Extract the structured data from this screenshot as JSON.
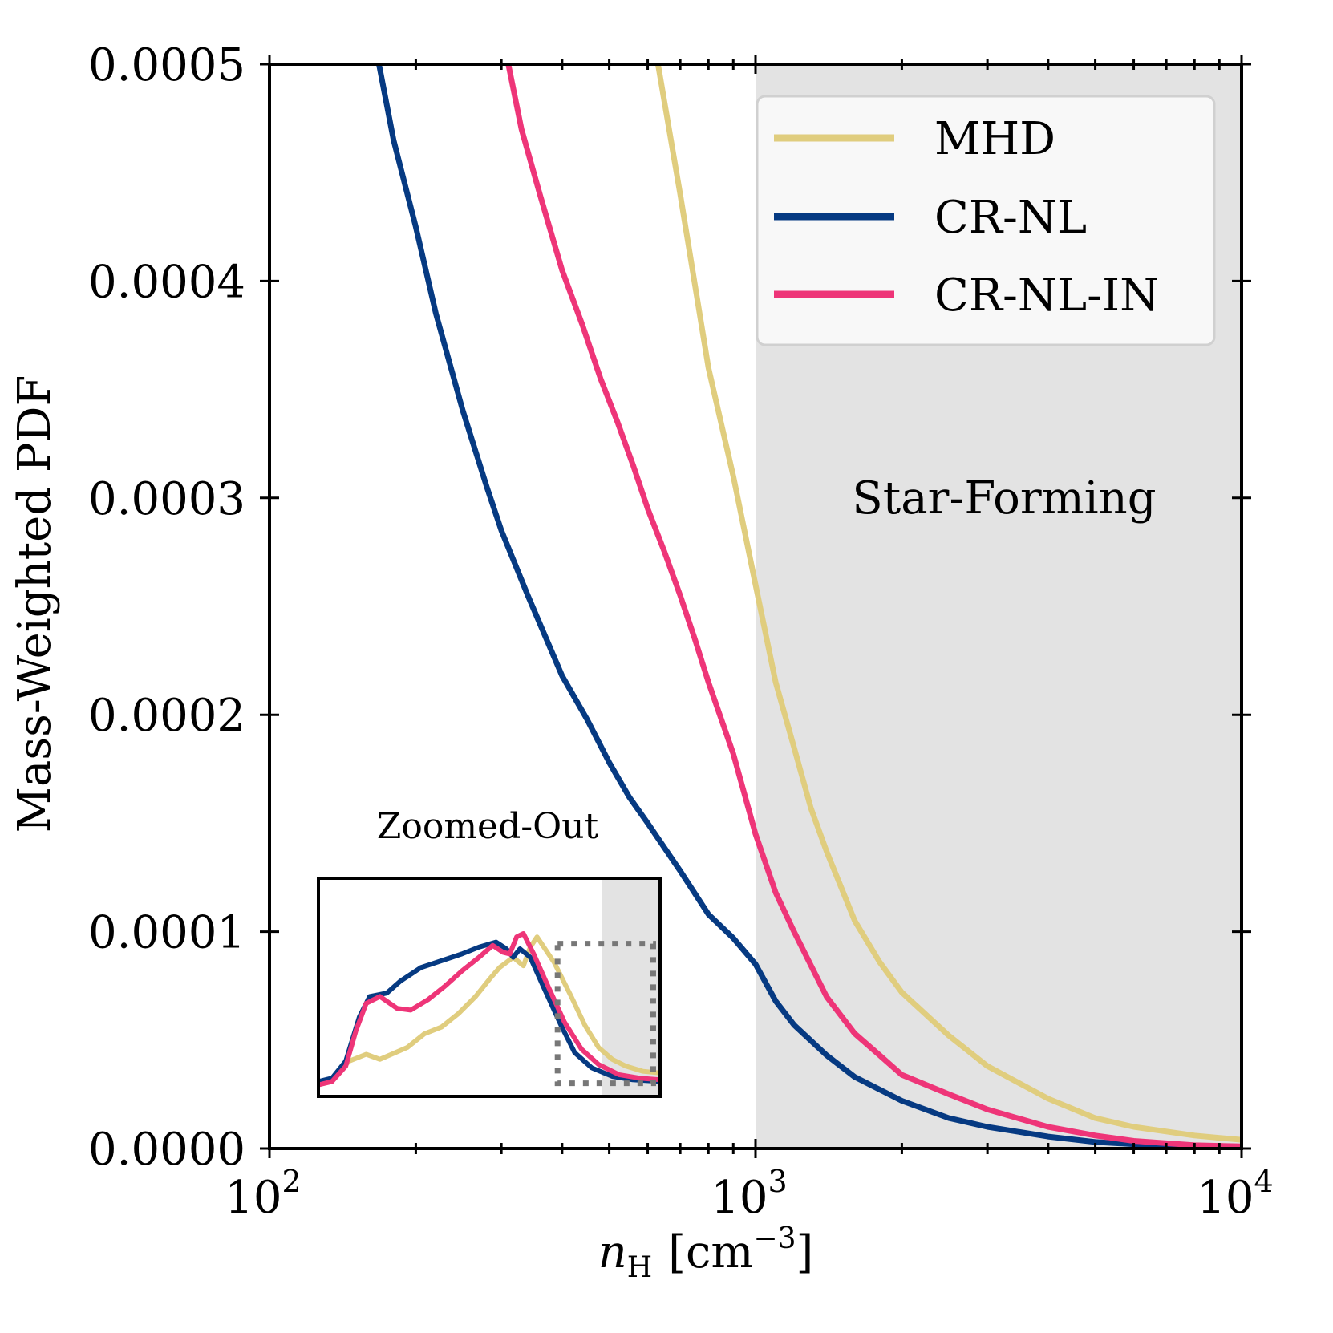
{
  "chart_data": {
    "type": "line",
    "xlabel": "n_H [cm^-3]",
    "xlabel_parts": {
      "symbol": "n",
      "subscript": "H",
      "unit_prefix": "[cm",
      "exponent": "−3",
      "unit_suffix": "]"
    },
    "ylabel": "Mass-Weighted PDF",
    "x_scale": "log",
    "xlim": [
      100,
      10000
    ],
    "ylim": [
      0,
      0.0005
    ],
    "x_ticks": [
      {
        "value": 100,
        "base": "10",
        "exp": "2"
      },
      {
        "value": 1000,
        "base": "10",
        "exp": "3"
      },
      {
        "value": 10000,
        "base": "10",
        "exp": "4"
      }
    ],
    "y_ticks": [
      {
        "value": 0,
        "label": "0.0000"
      },
      {
        "value": 0.0001,
        "label": "0.0001"
      },
      {
        "value": 0.0002,
        "label": "0.0002"
      },
      {
        "value": 0.0003,
        "label": "0.0003"
      },
      {
        "value": 0.0004,
        "label": "0.0004"
      },
      {
        "value": 0.0005,
        "label": "0.0005"
      }
    ],
    "grid": false,
    "legend_position": "top-right",
    "shaded_region": {
      "xmin": 1000,
      "xmax": 10000,
      "label": "Star-Forming",
      "color": "#e3e3e3"
    },
    "series": [
      {
        "name": "MHD",
        "color": "#e0cd7e",
        "x": [
          630,
          700,
          800,
          900,
          1000,
          1100,
          1200,
          1300,
          1400,
          1600,
          1800,
          2000,
          2500,
          3000,
          4000,
          5000,
          6000,
          8000,
          10000
        ],
        "y": [
          0.0005,
          0.00044,
          0.00036,
          0.00031,
          0.00026,
          0.000215,
          0.000185,
          0.000157,
          0.000137,
          0.000105,
          8.6e-05,
          7.2e-05,
          5.2e-05,
          3.8e-05,
          2.3e-05,
          1.4e-05,
          1e-05,
          6e-06,
          4e-06
        ]
      },
      {
        "name": "CR-NL",
        "color": "#063a82",
        "x": [
          168,
          180,
          200,
          220,
          250,
          280,
          300,
          340,
          400,
          450,
          500,
          550,
          600,
          700,
          800,
          900,
          1000,
          1100,
          1200,
          1400,
          1600,
          2000,
          2500,
          3000,
          4000,
          5000,
          6000,
          8000,
          10000
        ],
        "y": [
          0.0005,
          0.000465,
          0.000425,
          0.000385,
          0.00034,
          0.000305,
          0.000285,
          0.000255,
          0.000218,
          0.000198,
          0.000178,
          0.000162,
          0.00015,
          0.000128,
          0.000108,
          9.7e-05,
          8.5e-05,
          6.8e-05,
          5.7e-05,
          4.3e-05,
          3.3e-05,
          2.2e-05,
          1.4e-05,
          1e-05,
          5.5e-06,
          3e-06,
          2e-06,
          1e-06,
          8e-07
        ]
      },
      {
        "name": "CR-NL-IN",
        "color": "#ee3578",
        "x": [
          310,
          330,
          360,
          400,
          440,
          480,
          520,
          560,
          600,
          650,
          700,
          750,
          800,
          900,
          1000,
          1100,
          1200,
          1400,
          1600,
          1800,
          2000,
          2500,
          3000,
          4000,
          5000,
          6000,
          8000,
          10000
        ],
        "y": [
          0.0005,
          0.00047,
          0.00044,
          0.000405,
          0.00038,
          0.000355,
          0.000335,
          0.000315,
          0.000295,
          0.000275,
          0.000255,
          0.000235,
          0.000215,
          0.000182,
          0.000145,
          0.000118,
          0.0001,
          7e-05,
          5.3e-05,
          4.3e-05,
          3.4e-05,
          2.5e-05,
          1.8e-05,
          1e-05,
          6e-06,
          3.5e-06,
          1.5e-06,
          1e-06
        ]
      }
    ],
    "inset": {
      "title": "Zoomed-Out",
      "shaded_fraction_start": 0.83,
      "curves": {
        "MHD": [
          [
            0,
            0.05
          ],
          [
            0.04,
            0.06
          ],
          [
            0.09,
            0.17
          ],
          [
            0.14,
            0.21
          ],
          [
            0.18,
            0.18
          ],
          [
            0.26,
            0.25
          ],
          [
            0.31,
            0.33
          ],
          [
            0.36,
            0.37
          ],
          [
            0.41,
            0.45
          ],
          [
            0.46,
            0.55
          ],
          [
            0.5,
            0.65
          ],
          [
            0.53,
            0.72
          ],
          [
            0.57,
            0.78
          ],
          [
            0.6,
            0.73
          ],
          [
            0.62,
            0.84
          ],
          [
            0.64,
            0.9
          ],
          [
            0.69,
            0.75
          ],
          [
            0.74,
            0.55
          ],
          [
            0.78,
            0.38
          ],
          [
            0.82,
            0.25
          ],
          [
            0.86,
            0.18
          ],
          [
            0.9,
            0.14
          ],
          [
            0.95,
            0.11
          ],
          [
            1,
            0.1
          ]
        ],
        "CR-NL": [
          [
            0,
            0.05
          ],
          [
            0.04,
            0.07
          ],
          [
            0.08,
            0.17
          ],
          [
            0.12,
            0.43
          ],
          [
            0.15,
            0.55
          ],
          [
            0.2,
            0.57
          ],
          [
            0.24,
            0.64
          ],
          [
            0.3,
            0.72
          ],
          [
            0.36,
            0.76
          ],
          [
            0.42,
            0.8
          ],
          [
            0.47,
            0.84
          ],
          [
            0.52,
            0.87
          ],
          [
            0.55,
            0.83
          ],
          [
            0.57,
            0.78
          ],
          [
            0.59,
            0.83
          ],
          [
            0.62,
            0.78
          ],
          [
            0.66,
            0.6
          ],
          [
            0.71,
            0.38
          ],
          [
            0.75,
            0.22
          ],
          [
            0.8,
            0.13
          ],
          [
            0.86,
            0.08
          ],
          [
            0.92,
            0.06
          ],
          [
            1,
            0.05
          ]
        ],
        "CR-NL-IN": [
          [
            0,
            0.03
          ],
          [
            0.04,
            0.05
          ],
          [
            0.08,
            0.14
          ],
          [
            0.11,
            0.35
          ],
          [
            0.14,
            0.51
          ],
          [
            0.18,
            0.55
          ],
          [
            0.23,
            0.48
          ],
          [
            0.27,
            0.47
          ],
          [
            0.32,
            0.53
          ],
          [
            0.37,
            0.61
          ],
          [
            0.42,
            0.7
          ],
          [
            0.47,
            0.78
          ],
          [
            0.51,
            0.85
          ],
          [
            0.54,
            0.81
          ],
          [
            0.56,
            0.8
          ],
          [
            0.58,
            0.9
          ],
          [
            0.6,
            0.92
          ],
          [
            0.63,
            0.8
          ],
          [
            0.67,
            0.62
          ],
          [
            0.72,
            0.4
          ],
          [
            0.77,
            0.24
          ],
          [
            0.82,
            0.15
          ],
          [
            0.88,
            0.09
          ],
          [
            0.94,
            0.07
          ],
          [
            1,
            0.06
          ]
        ]
      }
    }
  }
}
